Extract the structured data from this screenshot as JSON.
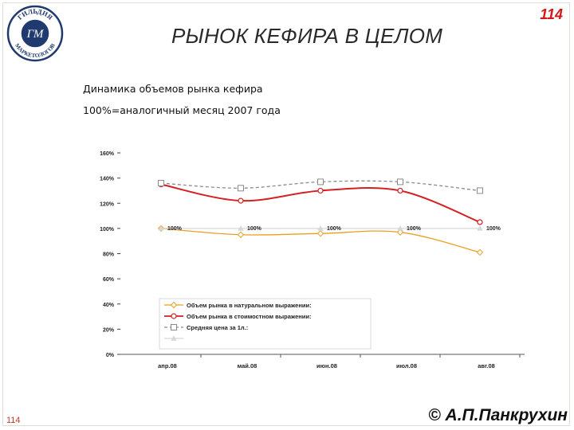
{
  "header": {
    "slide_number": "114",
    "title": "РЫНОК КЕФИРА В ЦЕЛОМ"
  },
  "logo": {
    "text_top": "ГИЛЬДИЯ",
    "text_bottom": "МАРКЕТОЛОГОВ",
    "monogram": "ГМ",
    "color": "#1f3a6e"
  },
  "subtitle": {
    "line1": "Динамика объемов рынка кефира",
    "line2": "100%=аналогичный месяц 2007 года"
  },
  "chart_data": {
    "type": "line",
    "categories": [
      "апр.08",
      "май.08",
      "июн.08",
      "июл.08",
      "авг.08"
    ],
    "y_ticks": [
      "0%",
      "20%",
      "40%",
      "60%",
      "80%",
      "100%",
      "120%",
      "140%",
      "160%"
    ],
    "ylim": [
      0,
      160
    ],
    "grid": false,
    "series": [
      {
        "name": "Объем рынка в натуральном выражении:",
        "values": [
          100,
          95,
          96,
          97,
          81
        ],
        "color": "#e8a020",
        "marker": "diamond",
        "dash": "solid"
      },
      {
        "name": "Объем рынка в стоимостном выражении:",
        "values": [
          135,
          122,
          130,
          130,
          105
        ],
        "color": "#d42020",
        "marker": "circle",
        "dash": "solid"
      },
      {
        "name": "Средняя цена за 1л.:",
        "values": [
          136,
          132,
          137,
          137,
          130
        ],
        "color": "#8a8a8a",
        "marker": "square",
        "dash": "dashed"
      },
      {
        "name": "",
        "values": [
          100,
          100,
          100,
          100,
          100
        ],
        "color": "#d8d8d8",
        "marker": "triangle",
        "dash": "solid",
        "data_labels": [
          "100%",
          "100%",
          "100%",
          "100%",
          "100%"
        ]
      }
    ],
    "legend_position": "bottom-left"
  },
  "footer": {
    "page": "114",
    "author": "© А.П.Панкрухин"
  }
}
